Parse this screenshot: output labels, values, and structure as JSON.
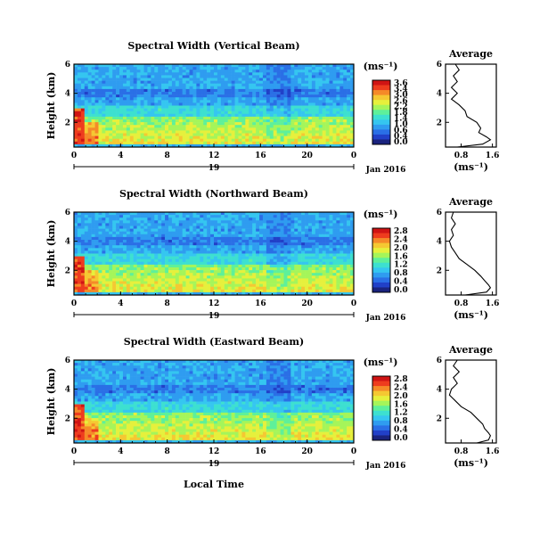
{
  "chart_data": {
    "type": "heatmap",
    "date_label": "Jan 2016",
    "day_label": "19",
    "xlabel": "Local Time",
    "ylabel": "Height (km)",
    "unit_label": "(ms⁻¹)",
    "x_ticks": [
      "0",
      "4",
      "8",
      "12",
      "16",
      "20",
      "0"
    ],
    "xlim": [
      0,
      24
    ],
    "ylim": [
      0.3,
      6
    ],
    "y_ticks": [
      "6",
      "4",
      "2"
    ],
    "colormap": [
      "#1a237e",
      "#2140c8",
      "#2a6fe6",
      "#2f9cf0",
      "#35c6f0",
      "#3de0d0",
      "#5ef09a",
      "#a5f55a",
      "#e6f03c",
      "#f5c832",
      "#f58a28",
      "#ee3c1e",
      "#d01414"
    ],
    "panels": [
      {
        "title": "Spectral Width (Vertical Beam)",
        "colorbar_ticks": [
          "3.6",
          "3.4",
          "3.0",
          "2.6",
          "2.2",
          "1.8",
          "1.4",
          "1.0",
          "0.6",
          "0.4",
          "0.0"
        ],
        "avg_title": "Average",
        "avg_xlabel": "(ms⁻¹)",
        "avg_xticks": [
          "0.8",
          "1.6"
        ],
        "avg_yticks": [
          "6",
          "4",
          "2"
        ],
        "avg_profile": {
          "height": [
            0.3,
            0.5,
            0.8,
            1.0,
            1.3,
            1.6,
            2.0,
            2.4,
            2.8,
            3.2,
            3.6,
            4.0,
            4.4,
            4.8,
            5.2,
            5.6,
            6.0
          ],
          "value": [
            0.7,
            1.35,
            1.55,
            1.45,
            1.25,
            1.3,
            1.2,
            0.95,
            0.9,
            0.75,
            0.55,
            0.7,
            0.55,
            0.7,
            0.6,
            0.75,
            0.65
          ]
        }
      },
      {
        "title": "Spectral Width (Northward Beam)",
        "colorbar_ticks": [
          "2.8",
          "2.4",
          "2.0",
          "1.6",
          "1.2",
          "0.8",
          "0.4",
          "0.0"
        ],
        "avg_title": "Average",
        "avg_xlabel": "(ms⁻¹)",
        "avg_xticks": [
          "0.8",
          "1.6"
        ],
        "avg_yticks": [
          "6",
          "4",
          "2"
        ],
        "avg_profile": {
          "height": [
            0.3,
            0.5,
            0.8,
            1.0,
            1.3,
            1.6,
            2.0,
            2.4,
            2.8,
            3.2,
            3.6,
            4.0,
            4.4,
            4.8,
            5.2,
            5.6,
            6.0
          ],
          "value": [
            0.9,
            1.45,
            1.55,
            1.5,
            1.4,
            1.3,
            1.15,
            0.95,
            0.75,
            0.65,
            0.55,
            0.5,
            0.6,
            0.55,
            0.65,
            0.55,
            0.6
          ]
        }
      },
      {
        "title": "Spectral Width (Eastward Beam)",
        "colorbar_ticks": [
          "2.8",
          "2.4",
          "2.0",
          "1.6",
          "1.2",
          "0.8",
          "0.4",
          "0.0"
        ],
        "avg_title": "Average",
        "avg_xlabel": "(ms⁻¹)",
        "avg_xticks": [
          "0.8",
          "1.6"
        ],
        "avg_yticks": [
          "6",
          "4",
          "2"
        ],
        "avg_profile": {
          "height": [
            0.3,
            0.5,
            0.8,
            1.0,
            1.3,
            1.6,
            2.0,
            2.4,
            2.8,
            3.2,
            3.6,
            4.0,
            4.4,
            4.8,
            5.2,
            5.6,
            6.0
          ],
          "value": [
            1.2,
            1.5,
            1.55,
            1.5,
            1.4,
            1.35,
            1.2,
            1.05,
            0.8,
            0.65,
            0.5,
            0.55,
            0.7,
            0.6,
            0.75,
            0.6,
            0.7
          ]
        }
      }
    ]
  }
}
